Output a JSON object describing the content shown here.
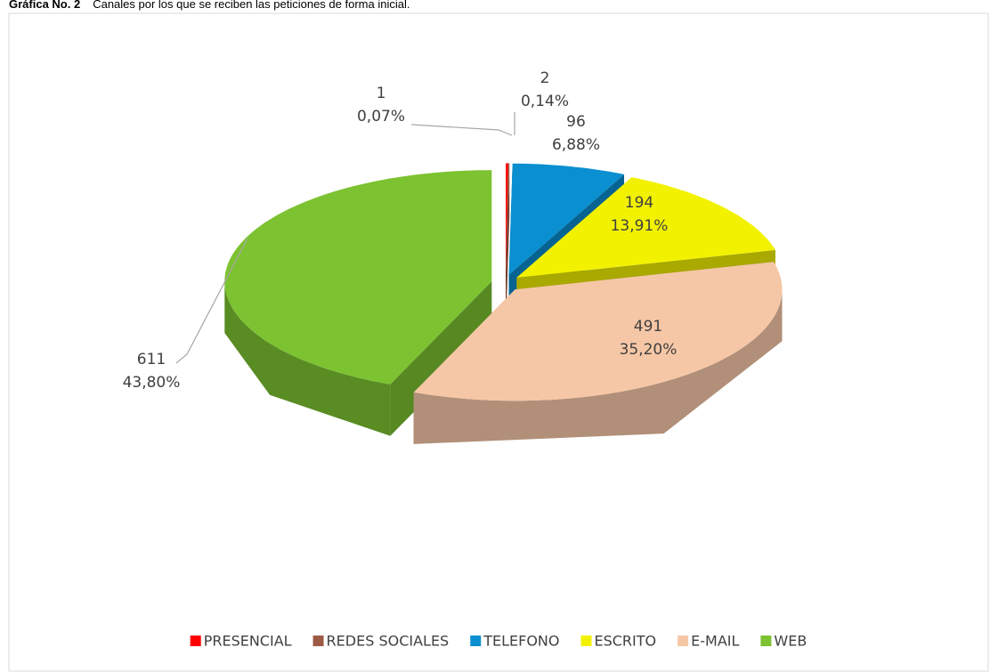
{
  "chart_data": {
    "type": "pie3d",
    "title_label": "Gráfica No. 2",
    "title": "Canales por los que se reciben las peticiones de forma inicial.",
    "categories": [
      "PRESENCIAL",
      "REDES SOCIALES",
      "TELEFONO",
      "ESCRITO",
      "E-MAIL",
      "WEB"
    ],
    "values": [
      2,
      1,
      96,
      194,
      491,
      611
    ],
    "percentages": [
      0.14,
      0.07,
      6.88,
      13.91,
      35.2,
      43.8
    ],
    "percentage_labels": [
      "0,14%",
      "0,07%",
      "6,88%",
      "13,91%",
      "35,20%",
      "43,80%"
    ],
    "colors": [
      "#ff0000",
      "#9e5a44",
      "#0a8fd0",
      "#f2f200",
      "#f6c7a6",
      "#7cc231"
    ]
  }
}
